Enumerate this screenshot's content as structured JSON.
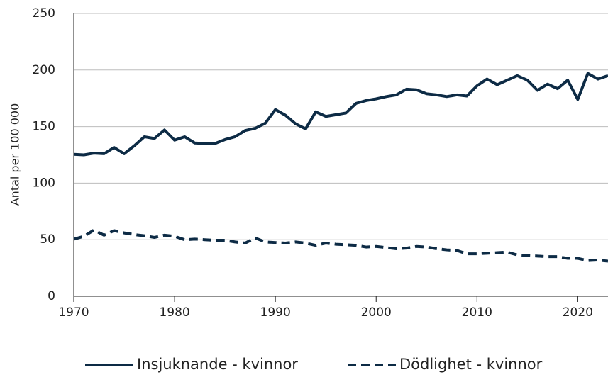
{
  "chart_data": {
    "type": "line",
    "y_label": "Antal per 100 000",
    "x": [
      1970,
      1971,
      1972,
      1973,
      1974,
      1975,
      1976,
      1977,
      1978,
      1979,
      1980,
      1981,
      1982,
      1983,
      1984,
      1985,
      1986,
      1987,
      1988,
      1989,
      1990,
      1991,
      1992,
      1993,
      1994,
      1995,
      1996,
      1997,
      1998,
      1999,
      2000,
      2001,
      2002,
      2003,
      2004,
      2005,
      2006,
      2007,
      2008,
      2009,
      2010,
      2011,
      2012,
      2013,
      2014,
      2015,
      2016,
      2017,
      2018,
      2019,
      2020,
      2021,
      2022,
      2023
    ],
    "series": [
      {
        "name": "Insjuknande - kvinnor",
        "color": "#0d2b45",
        "line_style": "solid",
        "values": [
          125.5,
          125,
          126.5,
          126,
          131.5,
          126,
          133,
          141,
          139.5,
          147,
          138,
          141,
          135.5,
          135,
          135,
          138.5,
          141,
          146.5,
          148.5,
          153,
          165,
          160,
          152.5,
          148,
          163,
          159,
          160.5,
          162,
          170.5,
          173,
          174.5,
          176.5,
          178,
          183,
          182.5,
          179,
          178,
          176.5,
          178,
          177,
          186,
          192,
          187,
          191,
          195,
          191,
          182,
          187.5,
          183.5,
          191,
          174,
          197,
          192,
          195
        ]
      },
      {
        "name": "Dödlighet - kvinnor",
        "color": "#0d2b45",
        "line_style": "dashed",
        "values": [
          50.5,
          53,
          58.5,
          54,
          58,
          56,
          54.5,
          53.5,
          52,
          54,
          53,
          50,
          50.5,
          50,
          49.5,
          49.5,
          48,
          47,
          51.5,
          48,
          47.5,
          47,
          48,
          47,
          45,
          47,
          46,
          45.5,
          45,
          43.5,
          44,
          43,
          42,
          42.5,
          44,
          43.5,
          42,
          41,
          40.5,
          37.5,
          37.5,
          38,
          38.5,
          39,
          36.5,
          36,
          35.5,
          35,
          35,
          33.5,
          33.5,
          31.5,
          32,
          31
        ]
      }
    ],
    "xlim": [
      1970,
      2023
    ],
    "xticks": [
      1970,
      1980,
      1990,
      2000,
      2010,
      2020
    ],
    "ylim": [
      0,
      250
    ],
    "yticks": [
      0,
      50,
      100,
      150,
      200,
      250
    ],
    "grid": true,
    "legend": "bottom"
  }
}
